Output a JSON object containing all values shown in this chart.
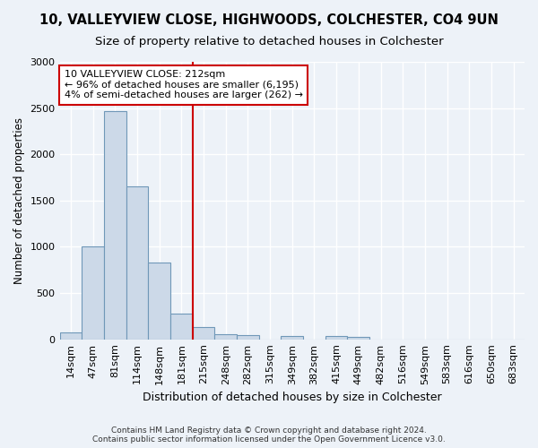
{
  "title": "10, VALLEYVIEW CLOSE, HIGHWOODS, COLCHESTER, CO4 9UN",
  "subtitle": "Size of property relative to detached houses in Colchester",
  "xlabel": "Distribution of detached houses by size in Colchester",
  "ylabel": "Number of detached properties",
  "categories": [
    "14sqm",
    "47sqm",
    "81sqm",
    "114sqm",
    "148sqm",
    "181sqm",
    "215sqm",
    "248sqm",
    "282sqm",
    "315sqm",
    "349sqm",
    "382sqm",
    "415sqm",
    "449sqm",
    "482sqm",
    "516sqm",
    "549sqm",
    "583sqm",
    "616sqm",
    "650sqm",
    "683sqm"
  ],
  "values": [
    75,
    1000,
    2470,
    1650,
    830,
    275,
    130,
    55,
    50,
    0,
    40,
    0,
    40,
    25,
    0,
    0,
    0,
    0,
    0,
    0,
    0
  ],
  "bar_color": "#ccd9e8",
  "bar_edge_color": "#7098b8",
  "marker_bin_index": 6,
  "annotation_line1": "10 VALLEYVIEW CLOSE: 212sqm",
  "annotation_line2": "← 96% of detached houses are smaller (6,195)",
  "annotation_line3": "4% of semi-detached houses are larger (262) →",
  "annotation_box_color": "#ffffff",
  "annotation_box_edge_color": "#cc0000",
  "vline_color": "#cc0000",
  "footer": "Contains HM Land Registry data © Crown copyright and database right 2024.\nContains public sector information licensed under the Open Government Licence v3.0.",
  "ylim": [
    0,
    3000
  ],
  "background_color": "#edf2f8",
  "grid_color": "#ffffff",
  "title_fontsize": 10.5,
  "subtitle_fontsize": 9.5
}
